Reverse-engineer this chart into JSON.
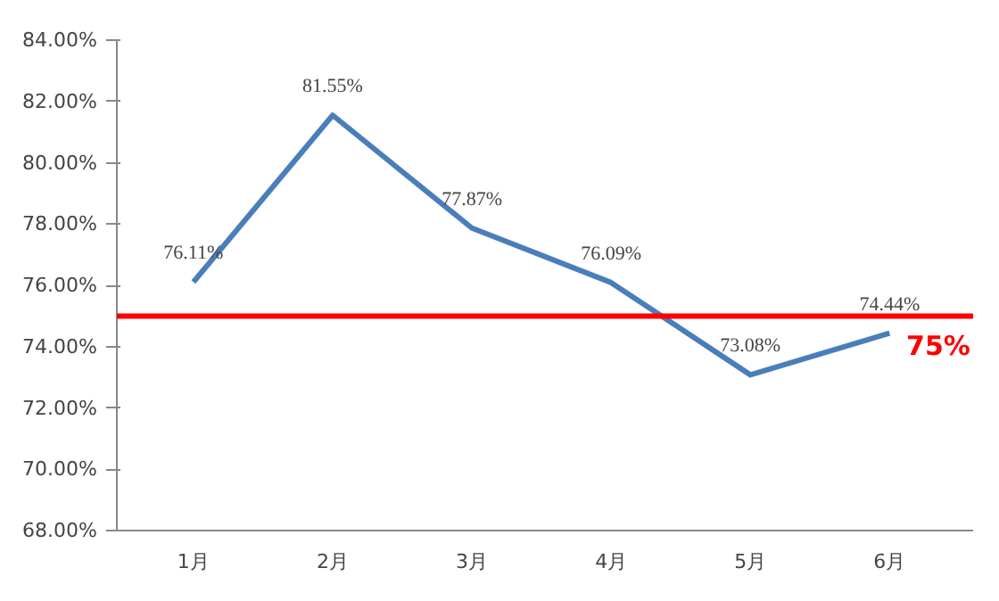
{
  "chart_data": {
    "type": "line",
    "categories": [
      "1月",
      "2月",
      "3月",
      "4月",
      "5月",
      "6月"
    ],
    "series": [
      {
        "color": "#4a7ebb",
        "values": [
          76.11,
          81.55,
          77.87,
          76.09,
          73.08,
          74.44
        ],
        "value_labels": [
          "76.11%",
          "81.55%",
          "77.87%",
          "76.09%",
          "73.08%",
          "74.44%"
        ]
      }
    ],
    "ylim": [
      68,
      84
    ],
    "yticks": [
      {
        "value": 68,
        "label": "68.00%"
      },
      {
        "value": 70,
        "label": "70.00%"
      },
      {
        "value": 72,
        "label": "72.00%"
      },
      {
        "value": 74,
        "label": "74.00%"
      },
      {
        "value": 76,
        "label": "76.00%"
      },
      {
        "value": 78,
        "label": "78.00%"
      },
      {
        "value": 80,
        "label": "80.00%"
      },
      {
        "value": 82,
        "label": "82.00%"
      },
      {
        "value": 84,
        "label": "84.00%"
      }
    ],
    "ref_lines": [
      {
        "axis": "y",
        "value": 75,
        "label": "75%",
        "color": "#ff0000"
      }
    ],
    "grid": false,
    "marker": "none",
    "line_style": "solid"
  }
}
